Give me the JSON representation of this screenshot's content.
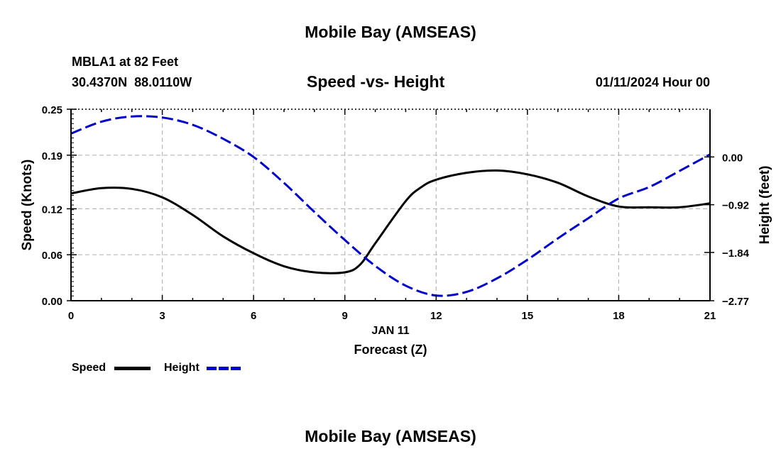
{
  "header": {
    "title": "Mobile Bay (AMSEAS)",
    "station": "MBLA1 at 82 Feet",
    "coords": "30.4370N  88.0110W",
    "subtitle": "Speed -vs- Height",
    "datetime": "01/11/2024 Hour 00"
  },
  "footer": {
    "title": "Mobile Bay (AMSEAS)"
  },
  "chart_data": {
    "type": "line",
    "title": "Speed -vs- Height",
    "xlabel": "Forecast (Z)",
    "xlabel_date": "JAN 11",
    "ylabel": "Speed (Knots)",
    "y2label": "Height (feet)",
    "xlim": [
      0,
      21
    ],
    "ylim": [
      0,
      0.25
    ],
    "y2lim": [
      -2.77,
      0.92
    ],
    "grid": true,
    "x_ticks": [
      0,
      3,
      6,
      9,
      12,
      15,
      18,
      21
    ],
    "x_tick_labels": [
      "0",
      "3",
      "6",
      "9",
      "12",
      "15",
      "18",
      "21"
    ],
    "y_ticks": [
      0,
      0.06,
      0.12,
      0.19,
      0.25
    ],
    "y_tick_labels": [
      "0.00",
      "0.06",
      "0.12",
      "0.19",
      "0.25"
    ],
    "y2_ticks": [
      -2.77,
      -1.84,
      -0.92,
      0.0
    ],
    "y2_tick_labels": [
      "−2.77",
      "−1.84",
      "−0.92",
      "0.00"
    ],
    "legend": {
      "placement": "bottom-left"
    },
    "series": [
      {
        "name": "Speed",
        "axis": "left",
        "color": "#000000",
        "dash": "solid",
        "x": [
          0,
          1,
          2,
          3,
          4,
          5,
          6,
          7,
          8,
          9,
          9.5,
          10,
          11,
          11.5,
          12,
          13,
          14,
          15,
          16,
          17,
          18,
          19,
          20,
          21
        ],
        "y": [
          0.14,
          0.147,
          0.146,
          0.135,
          0.112,
          0.084,
          0.062,
          0.045,
          0.037,
          0.037,
          0.047,
          0.075,
          0.13,
          0.148,
          0.158,
          0.167,
          0.17,
          0.165,
          0.154,
          0.136,
          0.123,
          0.122,
          0.122,
          0.127
        ]
      },
      {
        "name": "Height",
        "axis": "right",
        "color": "#0000cc",
        "dash": "dashed",
        "x": [
          0,
          1,
          2,
          3,
          4,
          5,
          6,
          7,
          8,
          9,
          10,
          11,
          12,
          13,
          14,
          15,
          16,
          17,
          18,
          19,
          20,
          21
        ],
        "y": [
          0.45,
          0.68,
          0.78,
          0.76,
          0.62,
          0.35,
          0.0,
          -0.5,
          -1.06,
          -1.6,
          -2.1,
          -2.48,
          -2.67,
          -2.6,
          -2.34,
          -1.98,
          -1.57,
          -1.18,
          -0.8,
          -0.58,
          -0.27,
          0.05
        ]
      }
    ]
  }
}
